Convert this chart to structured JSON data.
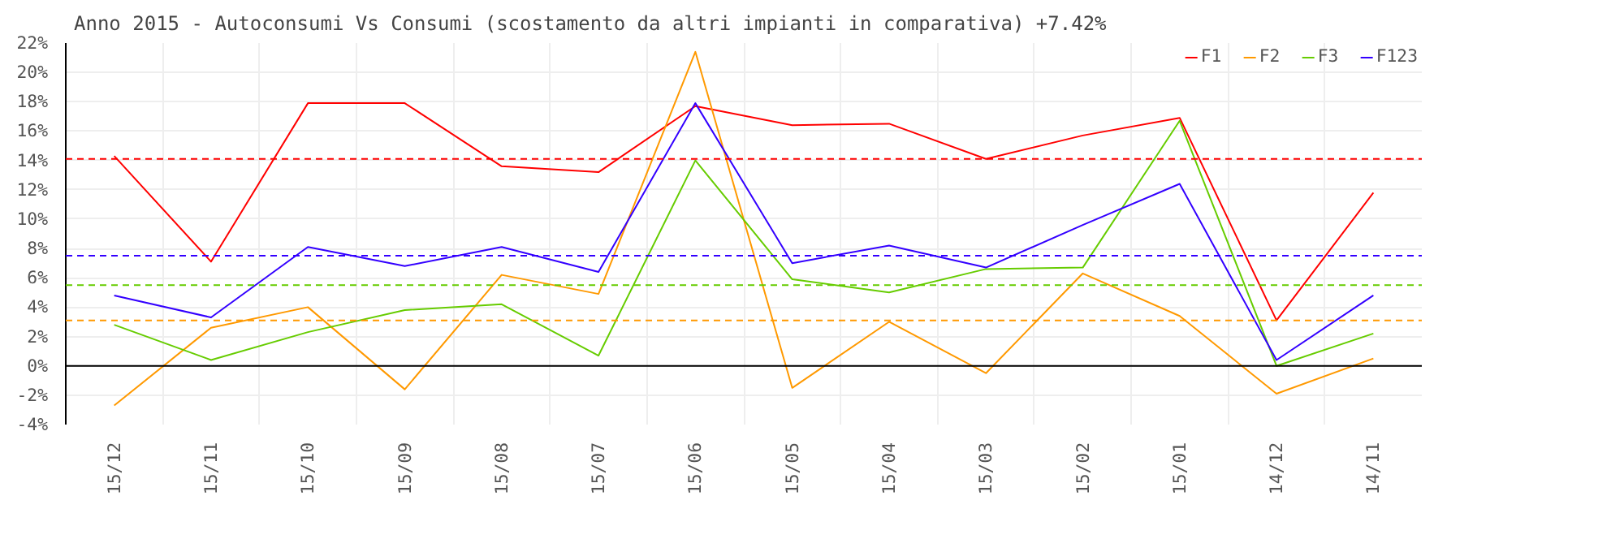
{
  "chart_data": {
    "type": "line",
    "title": "Anno 2015 - Autoconsumi Vs Consumi (scostamento da altri impianti in comparativa) +7.42%",
    "categories": [
      "15/12",
      "15/11",
      "15/10",
      "15/09",
      "15/08",
      "15/07",
      "15/06",
      "15/05",
      "15/04",
      "15/03",
      "15/02",
      "15/01",
      "14/12",
      "14/11"
    ],
    "series": [
      {
        "name": "F1",
        "color": "#ff0000",
        "values": [
          14.3,
          7.1,
          17.9,
          17.9,
          13.6,
          13.2,
          17.7,
          16.4,
          16.5,
          14.1,
          15.7,
          16.9,
          3.1,
          11.8
        ]
      },
      {
        "name": "F2",
        "color": "#ff9900",
        "values": [
          -2.7,
          2.6,
          4.0,
          -1.6,
          6.2,
          4.9,
          21.4,
          -1.5,
          3.0,
          -0.5,
          6.3,
          3.4,
          -1.9,
          0.5
        ]
      },
      {
        "name": "F3",
        "color": "#66cc00",
        "values": [
          2.8,
          0.4,
          2.3,
          3.8,
          4.2,
          0.7,
          14.0,
          5.9,
          5.0,
          6.6,
          6.7,
          16.7,
          0.0,
          2.2
        ]
      },
      {
        "name": "F123",
        "color": "#3300ff",
        "values": [
          4.8,
          3.3,
          8.1,
          6.8,
          8.1,
          6.4,
          17.9,
          7.0,
          8.2,
          6.7,
          9.6,
          12.4,
          0.4,
          4.8
        ]
      }
    ],
    "ref_lines": [
      {
        "axis": "y",
        "value": 0,
        "color": "#000000",
        "line_style": "solid"
      },
      {
        "axis": "y",
        "value": 14.1,
        "color": "#ff0000",
        "line_style": "dashed"
      },
      {
        "axis": "y",
        "value": 3.1,
        "color": "#ff9900",
        "line_style": "dashed"
      },
      {
        "axis": "y",
        "value": 5.5,
        "color": "#66cc00",
        "line_style": "dashed"
      },
      {
        "axis": "y",
        "value": 7.5,
        "color": "#3300ff",
        "line_style": "dashed"
      }
    ],
    "ylim": [
      -4,
      22
    ],
    "yticks": [
      {
        "value": -4,
        "label": "-4%"
      },
      {
        "value": -2,
        "label": "-2%"
      },
      {
        "value": 0,
        "label": "0%"
      },
      {
        "value": 2,
        "label": "2%"
      },
      {
        "value": 4,
        "label": "4%"
      },
      {
        "value": 6,
        "label": "6%"
      },
      {
        "value": 8,
        "label": "8%"
      },
      {
        "value": 10,
        "label": "10%"
      },
      {
        "value": 12,
        "label": "12%"
      },
      {
        "value": 14,
        "label": "14%"
      },
      {
        "value": 16,
        "label": "16%"
      },
      {
        "value": 18,
        "label": "18%"
      },
      {
        "value": 20,
        "label": "20%"
      },
      {
        "value": 22,
        "label": "22%"
      }
    ],
    "grid": true,
    "legend": "top right",
    "marker": "none",
    "line_style": "solid"
  }
}
